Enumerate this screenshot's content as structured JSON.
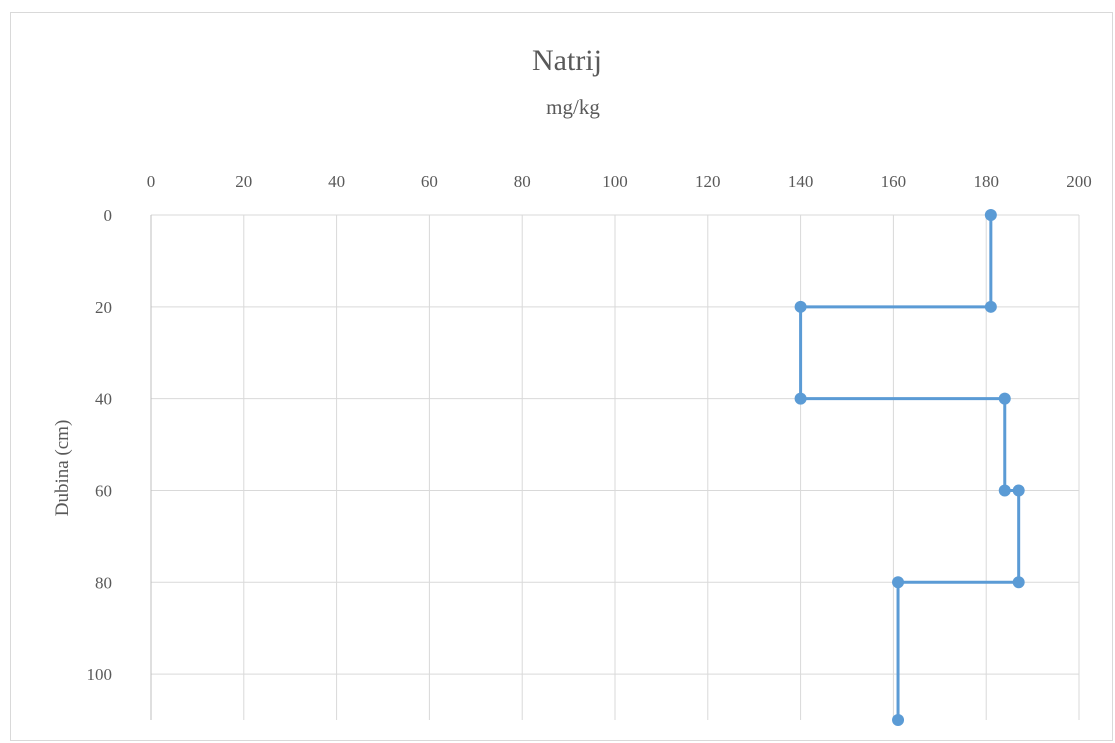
{
  "chart_data": {
    "type": "line",
    "title": "Natrij",
    "subtitle": "mg/kg",
    "xlabel": "",
    "ylabel": "Dubina (cm)",
    "xlim": [
      0,
      200
    ],
    "ylim": [
      0,
      110
    ],
    "y_inverted": true,
    "x_axis_position": "top",
    "x_ticks": [
      0,
      20,
      40,
      60,
      80,
      100,
      120,
      140,
      160,
      180,
      200
    ],
    "y_ticks": [
      0,
      20,
      40,
      60,
      80,
      100
    ],
    "grid": true,
    "legend": "none",
    "series": [
      {
        "color": "#5b9bd5",
        "points": [
          {
            "x": 181,
            "y": 0
          },
          {
            "x": 181,
            "y": 20
          },
          {
            "x": 140,
            "y": 20
          },
          {
            "x": 140,
            "y": 40
          },
          {
            "x": 184,
            "y": 40
          },
          {
            "x": 184,
            "y": 60
          },
          {
            "x": 187,
            "y": 60
          },
          {
            "x": 187,
            "y": 80
          },
          {
            "x": 161,
            "y": 80
          },
          {
            "x": 161,
            "y": 110
          }
        ]
      }
    ]
  }
}
